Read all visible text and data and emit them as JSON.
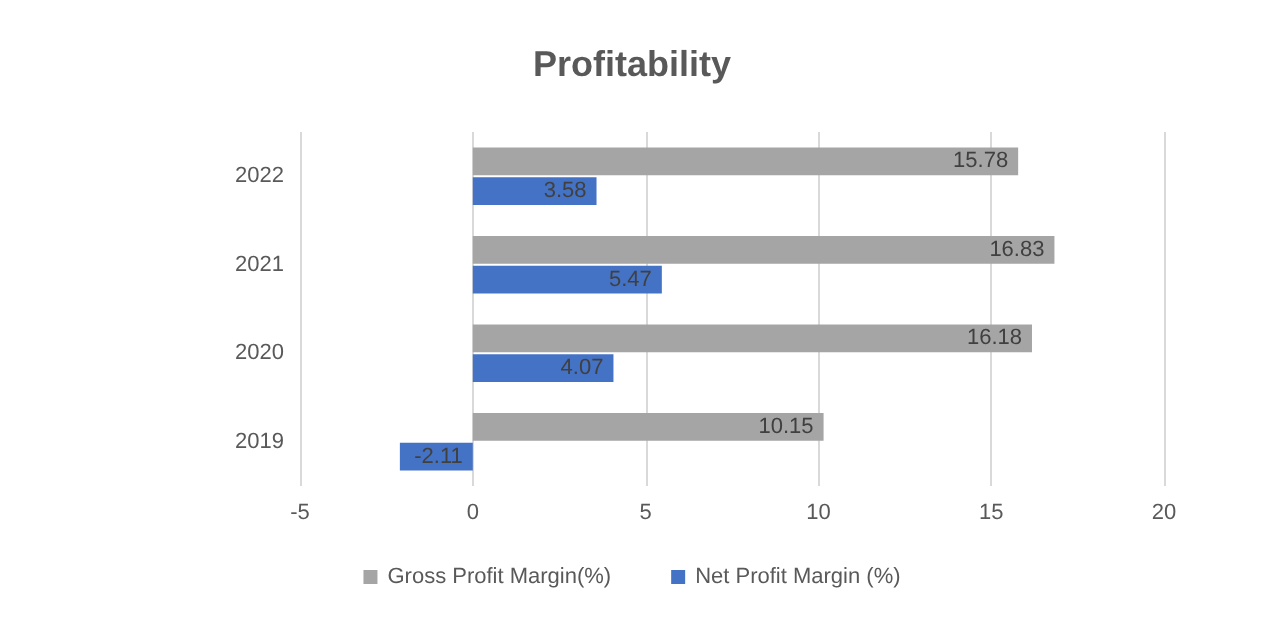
{
  "chart_data": {
    "type": "bar",
    "orientation": "horizontal",
    "title": "Profitability",
    "categories": [
      "2022",
      "2021",
      "2020",
      "2019"
    ],
    "series": [
      {
        "name": "Gross Profit Margin(%)",
        "color": "#a5a5a5",
        "values": [
          15.78,
          16.83,
          16.18,
          10.15
        ]
      },
      {
        "name": "Net Profit Margin (%)",
        "color": "#4472c4",
        "values": [
          3.58,
          5.47,
          4.07,
          -2.11
        ]
      }
    ],
    "xlim": [
      -5,
      20
    ],
    "xticks": [
      -5,
      0,
      5,
      10,
      15,
      20
    ],
    "grid": "x",
    "legend": "bottom",
    "data_labels": true
  }
}
